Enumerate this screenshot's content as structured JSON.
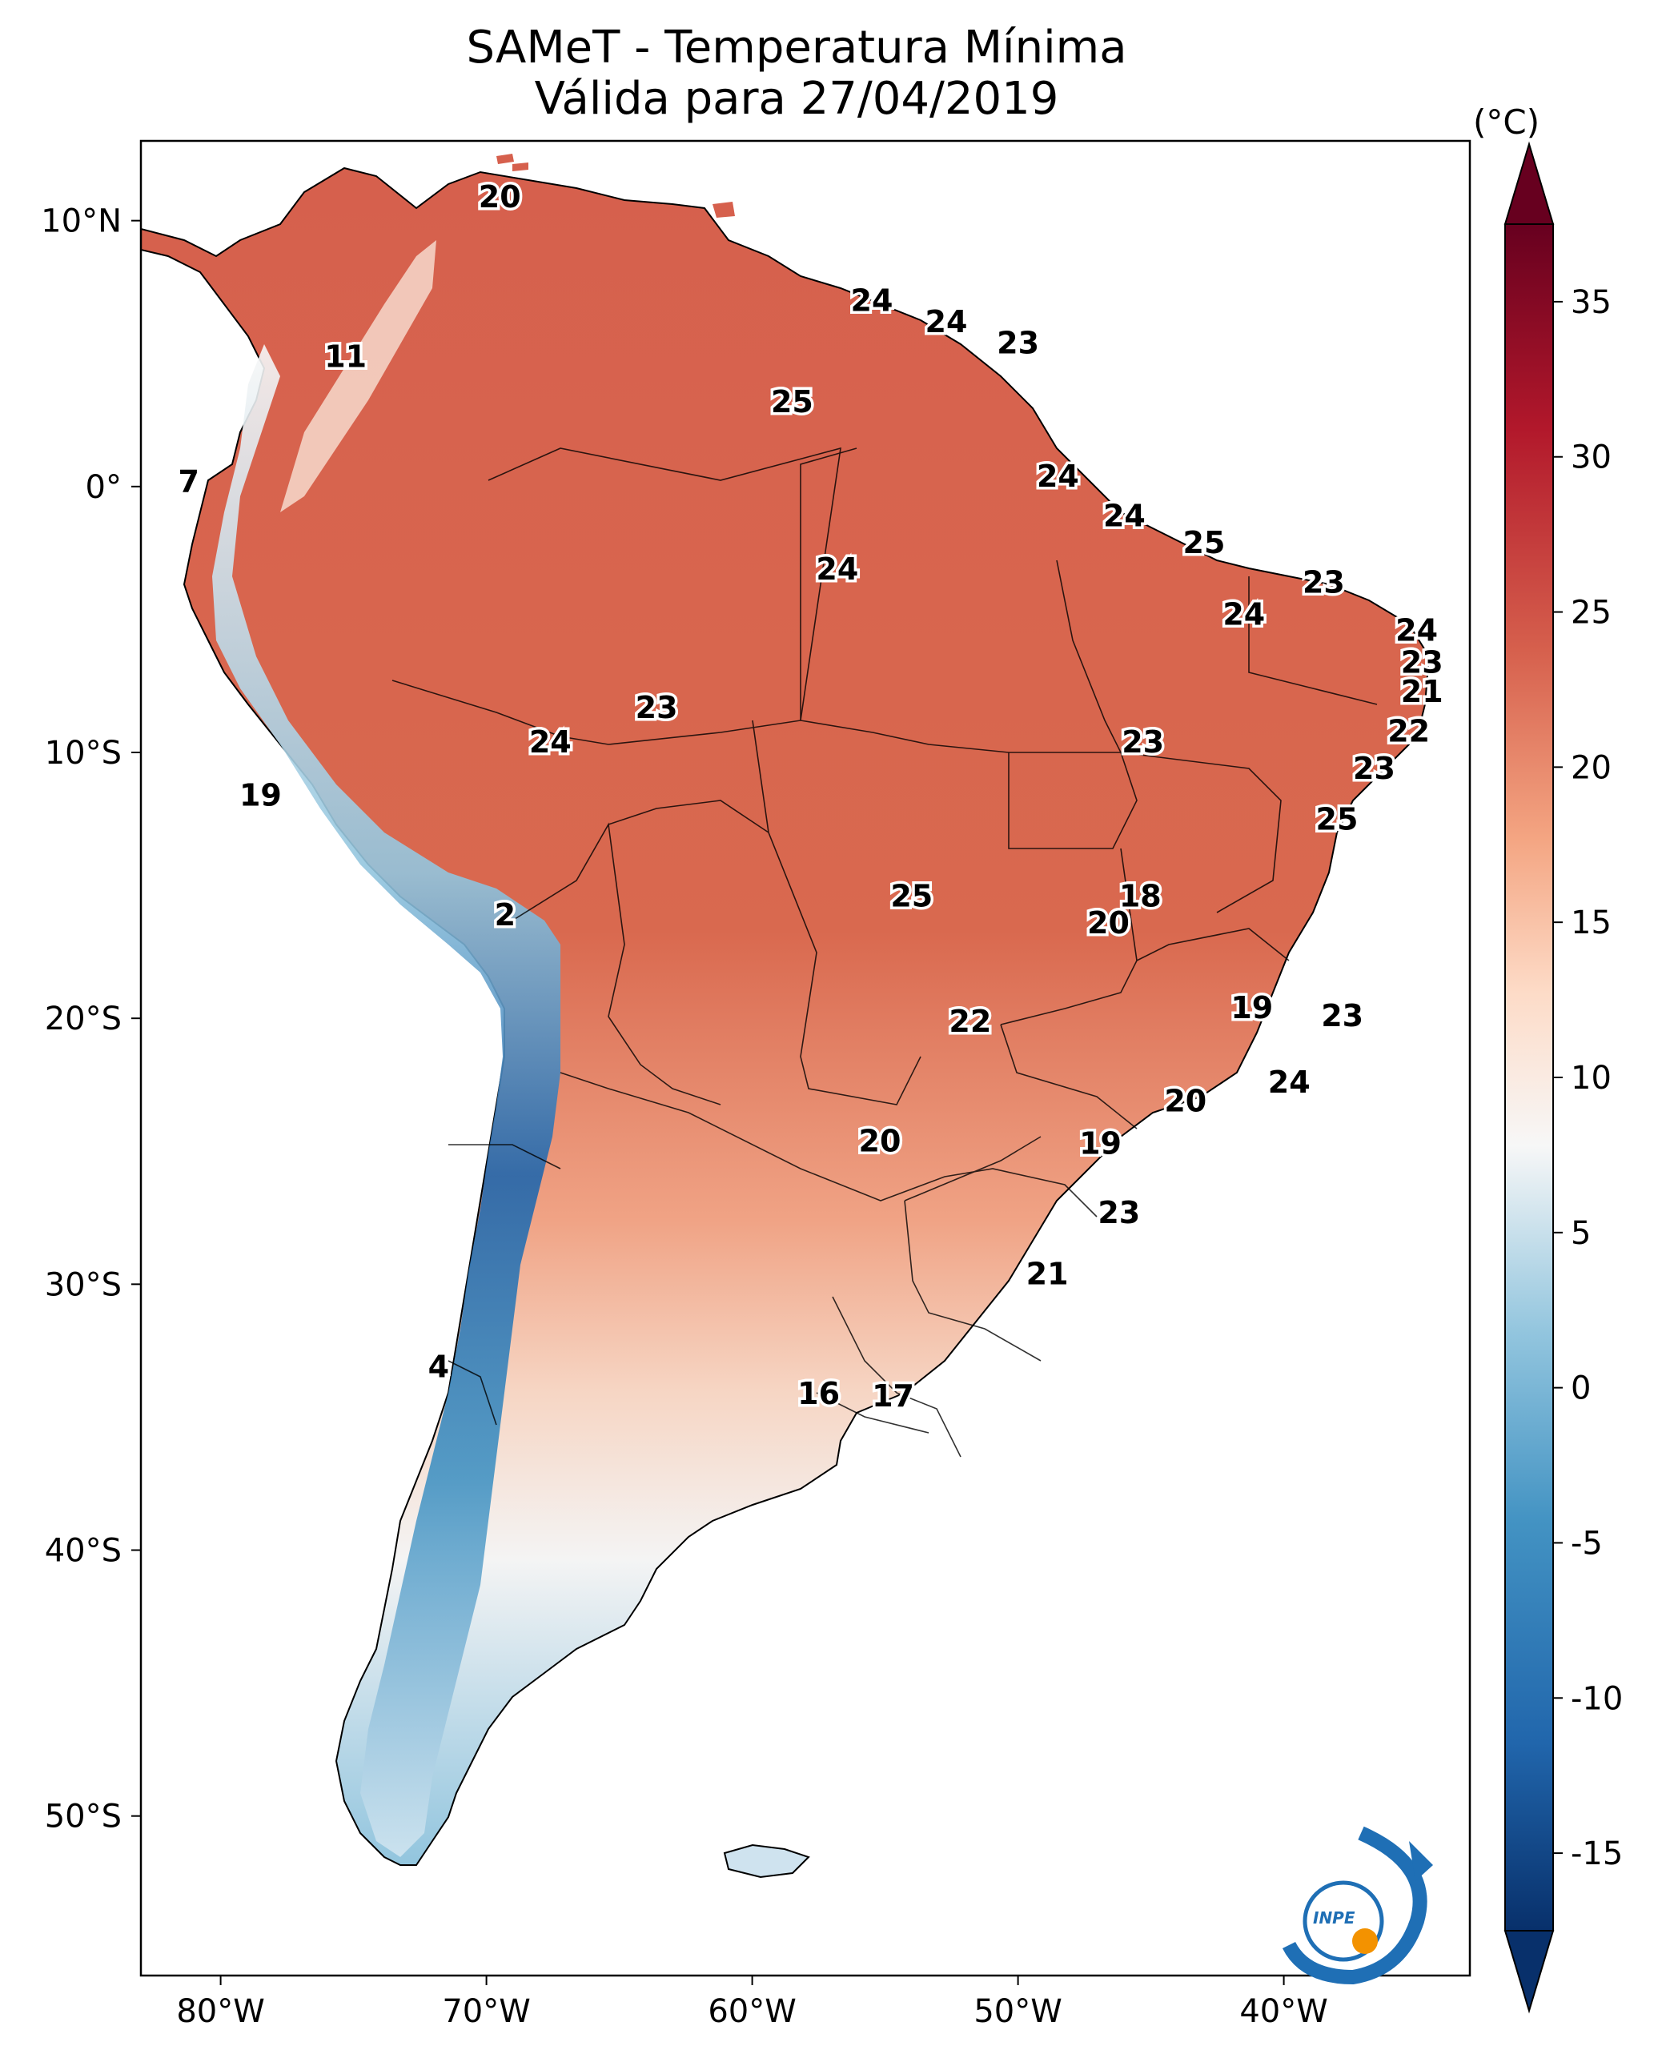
{
  "title": {
    "line1": "SAMeT - Temperatura Mínima",
    "line2": "Válida para 27/04/2019"
  },
  "map": {
    "lon_range": [
      -83,
      -33
    ],
    "lat_range": [
      -56,
      13
    ],
    "longitude_ticks": [
      "80°W",
      "70°W",
      "60°W",
      "50°W",
      "40°W"
    ],
    "latitude_ticks": [
      "10°N",
      "0°",
      "10°S",
      "20°S",
      "30°S",
      "40°S",
      "50°S"
    ],
    "temperature_labels": [
      {
        "lon": -69.5,
        "lat": 10.5,
        "value": "20"
      },
      {
        "lon": -55.5,
        "lat": 6.6,
        "value": "24"
      },
      {
        "lon": -52.7,
        "lat": 5.8,
        "value": "24"
      },
      {
        "lon": -50.0,
        "lat": 5.0,
        "value": "23"
      },
      {
        "lon": -75.3,
        "lat": 4.5,
        "value": "11"
      },
      {
        "lon": -58.5,
        "lat": 2.8,
        "value": "25"
      },
      {
        "lon": -81.2,
        "lat": -0.2,
        "value": "7"
      },
      {
        "lon": -48.5,
        "lat": 0.0,
        "value": "24"
      },
      {
        "lon": -46.0,
        "lat": -1.5,
        "value": "24"
      },
      {
        "lon": -43.0,
        "lat": -2.5,
        "value": "25"
      },
      {
        "lon": -56.8,
        "lat": -3.5,
        "value": "24"
      },
      {
        "lon": -38.5,
        "lat": -4.0,
        "value": "23"
      },
      {
        "lon": -41.5,
        "lat": -5.2,
        "value": "24"
      },
      {
        "lon": -35.0,
        "lat": -5.8,
        "value": "24"
      },
      {
        "lon": -34.8,
        "lat": -7.0,
        "value": "23"
      },
      {
        "lon": -34.8,
        "lat": -8.1,
        "value": "21"
      },
      {
        "lon": -35.3,
        "lat": -9.6,
        "value": "22"
      },
      {
        "lon": -63.6,
        "lat": -8.7,
        "value": "23"
      },
      {
        "lon": -67.6,
        "lat": -10.0,
        "value": "24"
      },
      {
        "lon": -45.3,
        "lat": -10.0,
        "value": "23"
      },
      {
        "lon": -36.6,
        "lat": -11.0,
        "value": "23"
      },
      {
        "lon": -78.5,
        "lat": -12.0,
        "value": "19"
      },
      {
        "lon": -38.0,
        "lat": -12.9,
        "value": "25"
      },
      {
        "lon": -54.0,
        "lat": -15.8,
        "value": "25"
      },
      {
        "lon": -45.4,
        "lat": -15.8,
        "value": "18"
      },
      {
        "lon": -46.6,
        "lat": -16.8,
        "value": "20"
      },
      {
        "lon": -69.3,
        "lat": -16.5,
        "value": "2"
      },
      {
        "lon": -41.2,
        "lat": -20.0,
        "value": "19"
      },
      {
        "lon": -37.8,
        "lat": -20.3,
        "value": "23"
      },
      {
        "lon": -51.8,
        "lat": -20.5,
        "value": "22"
      },
      {
        "lon": -39.8,
        "lat": -22.8,
        "value": "24"
      },
      {
        "lon": -43.7,
        "lat": -23.5,
        "value": "20"
      },
      {
        "lon": -55.2,
        "lat": -25.0,
        "value": "20"
      },
      {
        "lon": -46.9,
        "lat": -25.1,
        "value": "19"
      },
      {
        "lon": -46.2,
        "lat": -27.7,
        "value": "23"
      },
      {
        "lon": -48.9,
        "lat": -30.0,
        "value": "21"
      },
      {
        "lon": -71.8,
        "lat": -33.5,
        "value": "4"
      },
      {
        "lon": -57.5,
        "lat": -34.5,
        "value": "16"
      },
      {
        "lon": -54.7,
        "lat": -34.6,
        "value": "17"
      }
    ]
  },
  "colorbar": {
    "units": "(°C)",
    "range": [
      -17.5,
      37.5
    ],
    "tick_labels": [
      "35",
      "30",
      "25",
      "20",
      "15",
      "10",
      "5",
      "0",
      "-5",
      "-10",
      "-15"
    ],
    "tick_values": [
      35,
      30,
      25,
      20,
      15,
      10,
      5,
      0,
      -5,
      -10,
      -15
    ],
    "colors": [
      "#08306b",
      "#2166ac",
      "#4393c3",
      "#92c5de",
      "#f7f7f7",
      "#fddbc7",
      "#f4a582",
      "#d6604d",
      "#b2182b",
      "#67001f"
    ]
  },
  "logo": {
    "text": "INPE",
    "colors": {
      "blue": "#1f6fb5",
      "orange": "#f39200"
    }
  }
}
